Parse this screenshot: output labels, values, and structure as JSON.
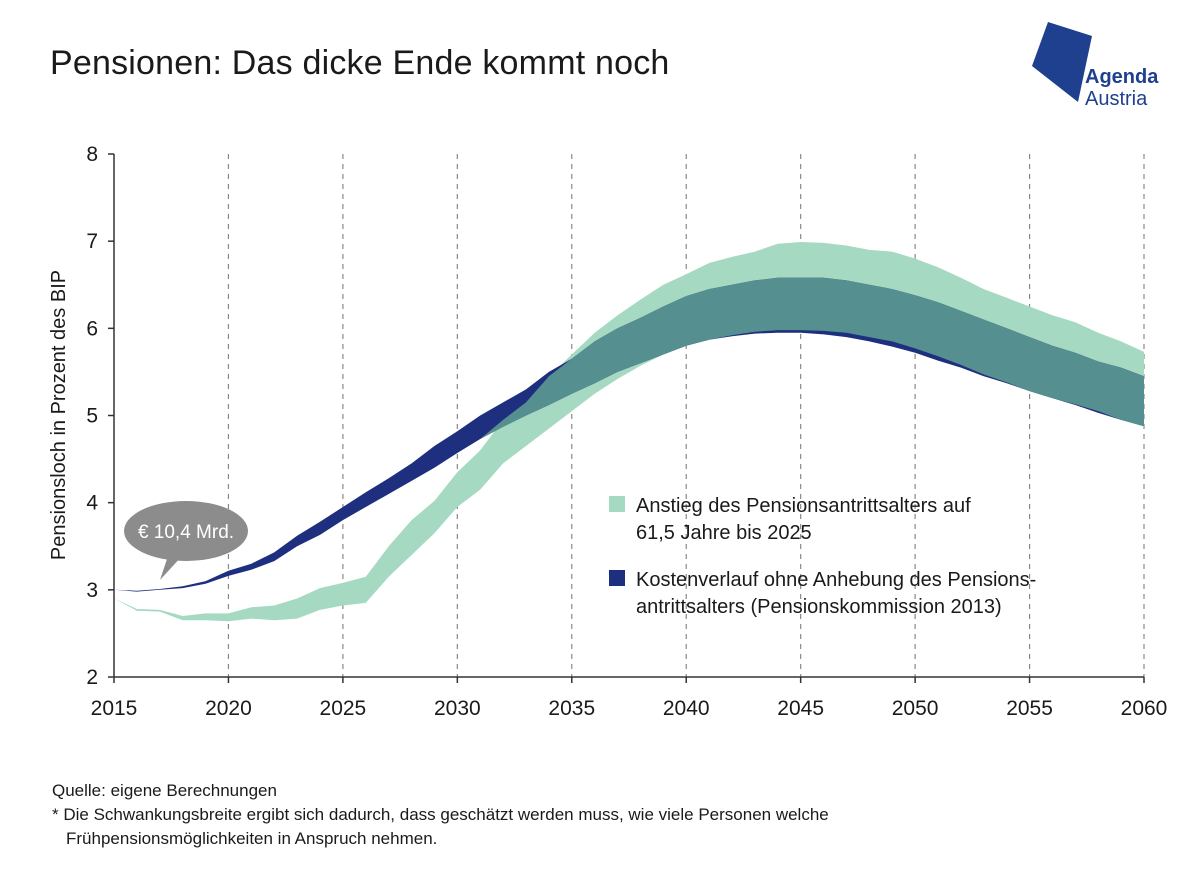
{
  "title": "Pensionen: Das dicke Ende kommt noch",
  "logo": {
    "line1": "Agenda",
    "line2": "Austria",
    "color": "#1f3f8f"
  },
  "callout": {
    "text": "€ 10,4 Mrd.",
    "color": "#8c8c8c"
  },
  "footer": {
    "source": "Quelle: eigene Berechnungen",
    "note_line1": "* Die Schwankungsbreite ergibt sich dadurch, dass geschätzt werden muss, wie viele Personen welche",
    "note_line2": "Frühpensionsmöglichkeiten in Anspruch nehmen."
  },
  "chart_data": {
    "type": "area",
    "ylabel": "Pensionsloch in Prozent des BIP",
    "xlabel": "",
    "xlim": [
      2015,
      2060
    ],
    "ylim": [
      2,
      8
    ],
    "x_ticks": [
      "2015",
      "2020",
      "2025",
      "2030",
      "2035",
      "2040",
      "2045",
      "2050",
      "2055",
      "2060"
    ],
    "y_ticks": [
      "2",
      "3",
      "4",
      "5",
      "6",
      "7",
      "8"
    ],
    "grid": "vertical dashed",
    "legend_position": "right-middle",
    "series": [
      {
        "name": "Anstieg des Pensionsantrittsalters auf 61,5 Jahre bis 2025",
        "legend_line1": "Anstieg des Pensionsantrittsalters auf",
        "legend_line2": "61,5 Jahre bis 2025",
        "color": "#a6d9c2",
        "x": [
          2015,
          2016,
          2017,
          2018,
          2019,
          2020,
          2021,
          2022,
          2023,
          2024,
          2025,
          2026,
          2027,
          2028,
          2029,
          2030,
          2031,
          2032,
          2033,
          2034,
          2035,
          2036,
          2037,
          2038,
          2039,
          2040,
          2041,
          2042,
          2043,
          2044,
          2045,
          2046,
          2047,
          2048,
          2049,
          2050,
          2051,
          2052,
          2053,
          2054,
          2055,
          2056,
          2057,
          2058,
          2059,
          2060
        ],
        "upper": [
          2.9,
          2.78,
          2.77,
          2.7,
          2.73,
          2.73,
          2.8,
          2.82,
          2.9,
          3.02,
          3.08,
          3.15,
          3.5,
          3.8,
          4.02,
          4.35,
          4.6,
          4.95,
          5.15,
          5.45,
          5.7,
          5.95,
          6.15,
          6.33,
          6.5,
          6.62,
          6.75,
          6.82,
          6.88,
          6.97,
          6.99,
          6.98,
          6.95,
          6.9,
          6.88,
          6.8,
          6.7,
          6.58,
          6.45,
          6.35,
          6.25,
          6.15,
          6.07,
          5.95,
          5.85,
          5.73
        ],
        "lower": [
          2.9,
          2.76,
          2.75,
          2.65,
          2.65,
          2.64,
          2.67,
          2.65,
          2.67,
          2.77,
          2.82,
          2.85,
          3.15,
          3.4,
          3.65,
          3.95,
          4.15,
          4.45,
          4.65,
          4.85,
          5.05,
          5.25,
          5.42,
          5.57,
          5.7,
          5.8,
          5.87,
          5.92,
          5.96,
          5.98,
          5.98,
          5.97,
          5.95,
          5.9,
          5.85,
          5.77,
          5.68,
          5.58,
          5.47,
          5.38,
          5.28,
          5.2,
          5.13,
          5.05,
          4.95,
          4.87
        ]
      },
      {
        "name": "Kostenverlauf ohne Anhebung des Pensionsantrittsalters (Pensionskommission 2013)",
        "legend_line1": "Kostenverlauf ohne Anhebung des Pensions-",
        "legend_line2": "antrittsalters (Pensionskommission 2013)",
        "color": "#1f2f7f",
        "x": [
          2015,
          2016,
          2017,
          2018,
          2019,
          2020,
          2021,
          2022,
          2023,
          2024,
          2025,
          2026,
          2027,
          2028,
          2029,
          2030,
          2031,
          2032,
          2033,
          2034,
          2035,
          2036,
          2037,
          2038,
          2039,
          2040,
          2041,
          2042,
          2043,
          2044,
          2045,
          2046,
          2047,
          2048,
          2049,
          2050,
          2051,
          2052,
          2053,
          2054,
          2055,
          2056,
          2057,
          2058,
          2059,
          2060
        ],
        "upper": [
          3.0,
          2.99,
          3.01,
          3.04,
          3.1,
          3.22,
          3.3,
          3.43,
          3.62,
          3.78,
          3.95,
          4.12,
          4.28,
          4.45,
          4.65,
          4.82,
          5.0,
          5.15,
          5.3,
          5.5,
          5.65,
          5.85,
          6.0,
          6.12,
          6.25,
          6.37,
          6.45,
          6.5,
          6.55,
          6.58,
          6.58,
          6.58,
          6.55,
          6.5,
          6.45,
          6.38,
          6.3,
          6.2,
          6.1,
          6.0,
          5.9,
          5.8,
          5.72,
          5.62,
          5.55,
          5.45
        ],
        "lower": [
          3.0,
          2.98,
          3.0,
          3.02,
          3.07,
          3.16,
          3.23,
          3.33,
          3.5,
          3.63,
          3.8,
          3.95,
          4.1,
          4.25,
          4.4,
          4.57,
          4.73,
          4.87,
          5.0,
          5.12,
          5.25,
          5.37,
          5.5,
          5.6,
          5.7,
          5.8,
          5.87,
          5.91,
          5.94,
          5.95,
          5.95,
          5.93,
          5.9,
          5.85,
          5.79,
          5.72,
          5.63,
          5.55,
          5.45,
          5.37,
          5.28,
          5.2,
          5.12,
          5.03,
          4.95,
          4.88
        ]
      }
    ]
  }
}
